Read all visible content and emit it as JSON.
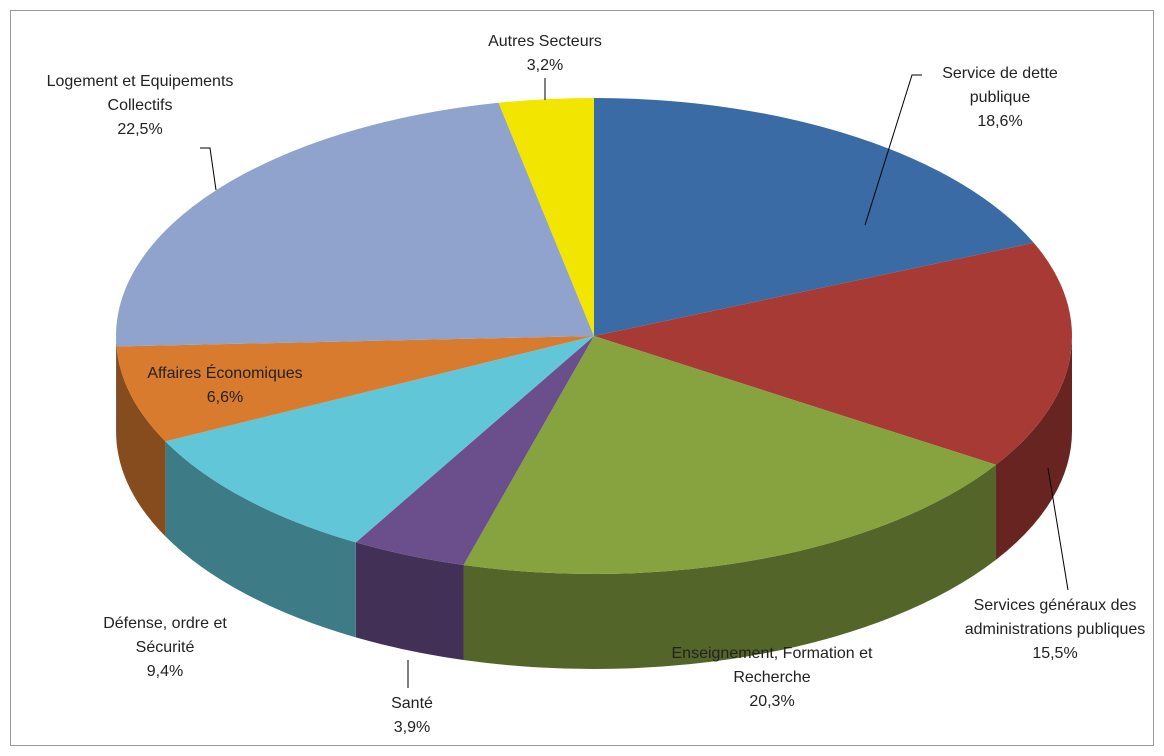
{
  "chart_data": {
    "type": "pie3d",
    "categories": [
      "Service de dette publique",
      "Services généraux des administrations publiques",
      "Enseignement, Formation et Recherche",
      "Santé",
      "Défense, ordre et Sécurité",
      "Affaires Économiques",
      "Logement et Equipements Collectifs",
      "Autres Secteurs"
    ],
    "values": [
      18.6,
      15.5,
      20.3,
      3.9,
      9.4,
      6.6,
      22.5,
      3.2
    ],
    "value_labels": [
      "18,6%",
      "15,5%",
      "20,3%",
      "3,9%",
      "9,4%",
      "6,6%",
      "22,5%",
      "3,2%"
    ],
    "colors": [
      "#3a6ba5",
      "#a83a35",
      "#86a340",
      "#6b4e8c",
      "#62c6d9",
      "#d97b2e",
      "#8fa3cc",
      "#f2e600"
    ]
  }
}
